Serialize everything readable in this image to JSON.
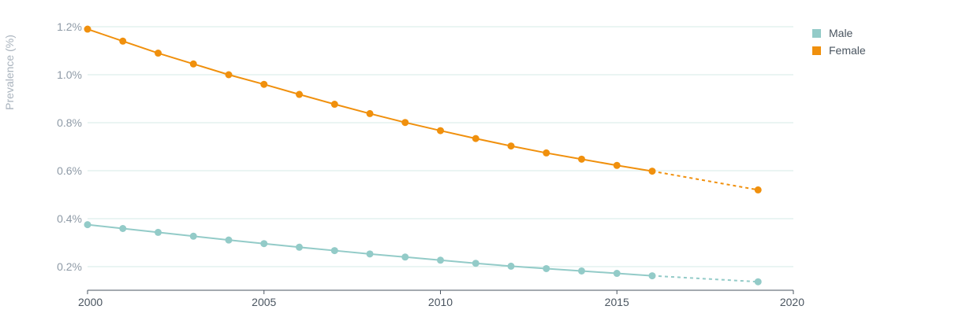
{
  "chart_data": {
    "type": "line",
    "ylabel": "Prevalence (%)",
    "xlabel": "",
    "x_ticks": [
      "2000",
      "2005",
      "2010",
      "2015",
      "2020"
    ],
    "y_ticks": [
      "0.2%",
      "0.4%",
      "0.6%",
      "0.8%",
      "1.0%",
      "1.2%"
    ],
    "xlim": [
      2000,
      2020
    ],
    "ylim": [
      0.1,
      1.2
    ],
    "grid": true,
    "legend_position": "right",
    "series": [
      {
        "name": "Male",
        "color": "#93cbc8",
        "x": [
          2000,
          2001,
          2002,
          2003,
          2004,
          2005,
          2006,
          2007,
          2008,
          2009,
          2010,
          2011,
          2012,
          2013,
          2014,
          2015,
          2016
        ],
        "values": [
          0.375,
          0.359,
          0.343,
          0.327,
          0.311,
          0.296,
          0.281,
          0.267,
          0.253,
          0.24,
          0.227,
          0.214,
          0.202,
          0.192,
          0.182,
          0.172,
          0.162
        ],
        "projection": {
          "x": [
            2016,
            2019
          ],
          "values": [
            0.162,
            0.137
          ]
        }
      },
      {
        "name": "Female",
        "color": "#f0900d",
        "x": [
          2000,
          2001,
          2002,
          2003,
          2004,
          2005,
          2006,
          2007,
          2008,
          2009,
          2010,
          2011,
          2012,
          2013,
          2014,
          2015,
          2016
        ],
        "values": [
          1.19,
          1.14,
          1.09,
          1.045,
          1.0,
          0.96,
          0.918,
          0.877,
          0.838,
          0.801,
          0.767,
          0.734,
          0.703,
          0.674,
          0.648,
          0.622,
          0.598
        ],
        "projection": {
          "x": [
            2016,
            2019
          ],
          "values": [
            0.598,
            0.52
          ]
        }
      }
    ]
  }
}
